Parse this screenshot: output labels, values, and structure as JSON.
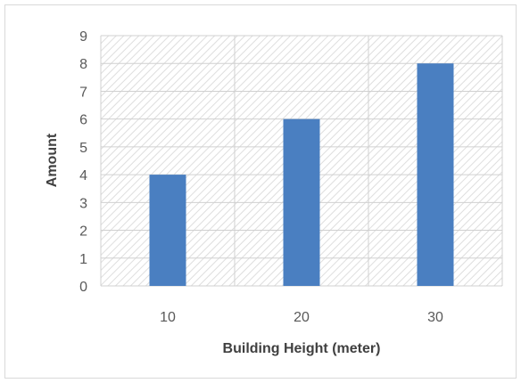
{
  "chart_data": {
    "type": "bar",
    "title": "",
    "xlabel": "Building Height (meter)",
    "ylabel": "Amount",
    "categories": [
      "10",
      "20",
      "30"
    ],
    "values": [
      4,
      6,
      8
    ],
    "ylim": [
      0,
      9
    ],
    "yticks": [
      "0",
      "1",
      "2",
      "3",
      "4",
      "5",
      "6",
      "7",
      "8",
      "9"
    ],
    "grid": true,
    "legend": "none",
    "bar_color": "#4a7fc1",
    "plot_background": "hatched",
    "gridline_color": "#d0d0d0"
  }
}
